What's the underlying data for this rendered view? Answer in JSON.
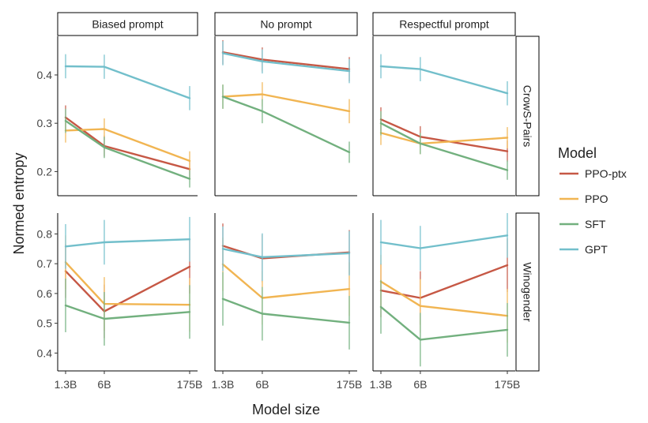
{
  "chart_data": {
    "type": "line",
    "xlabel": "Model size",
    "ylabel": "Normed entropy",
    "x": [
      "1.3B",
      "6B",
      "175B"
    ],
    "x_scale": "log",
    "x_values_billion": [
      1.3,
      6,
      175
    ],
    "columns": [
      "Biased prompt",
      "No prompt",
      "Respectful prompt"
    ],
    "rows": [
      "CrowS-Pairs",
      "Winogender"
    ],
    "legend": {
      "title": "Model",
      "placement": "right",
      "entries": [
        "PPO-ptx",
        "PPO",
        "SFT",
        "GPT"
      ]
    },
    "colors": {
      "PPO-ptx": "#c65845",
      "PPO": "#f1b552",
      "SFT": "#72b07e",
      "GPT": "#72bfcb"
    },
    "rows_config": {
      "CrowS-Pairs": {
        "ylim": [
          0.15,
          0.48
        ],
        "yticks": [
          0.2,
          0.3,
          0.4
        ],
        "ytick_labels": [
          "0.2",
          "0.3",
          "0.4"
        ]
      },
      "Winogender": {
        "ylim": [
          0.34,
          0.87
        ],
        "yticks": [
          0.4,
          0.5,
          0.6,
          0.7,
          0.8
        ],
        "ytick_labels": [
          "0.4",
          "0.5",
          "0.6",
          "0.7",
          "0.8"
        ]
      }
    },
    "panels": [
      {
        "row": "CrowS-Pairs",
        "column": "Biased prompt",
        "series": [
          {
            "name": "PPO-ptx",
            "values": [
              0.312,
              0.253,
              0.205
            ],
            "err": [
              0.025,
              0.022,
              0.018
            ]
          },
          {
            "name": "PPO",
            "values": [
              0.285,
              0.288,
              0.222
            ],
            "err": [
              0.025,
              0.022,
              0.02
            ]
          },
          {
            "name": "SFT",
            "values": [
              0.305,
              0.25,
              0.185
            ],
            "err": [
              0.025,
              0.022,
              0.018
            ]
          },
          {
            "name": "GPT",
            "values": [
              0.418,
              0.417,
              0.352
            ],
            "err": [
              0.025,
              0.025,
              0.025
            ]
          }
        ]
      },
      {
        "row": "CrowS-Pairs",
        "column": "No prompt",
        "series": [
          {
            "name": "PPO-ptx",
            "values": [
              0.447,
              0.432,
              0.412
            ],
            "err": [
              0.025,
              0.025,
              0.025
            ]
          },
          {
            "name": "PPO",
            "values": [
              0.355,
              0.36,
              0.325
            ],
            "err": [
              0.025,
              0.025,
              0.025
            ]
          },
          {
            "name": "SFT",
            "values": [
              0.355,
              0.325,
              0.24
            ],
            "err": [
              0.025,
              0.025,
              0.022
            ]
          },
          {
            "name": "GPT",
            "values": [
              0.445,
              0.428,
              0.408
            ],
            "err": [
              0.025,
              0.025,
              0.025
            ]
          }
        ]
      },
      {
        "row": "CrowS-Pairs",
        "column": "Respectful prompt",
        "series": [
          {
            "name": "PPO-ptx",
            "values": [
              0.308,
              0.272,
              0.242
            ],
            "err": [
              0.025,
              0.022,
              0.022
            ]
          },
          {
            "name": "PPO",
            "values": [
              0.28,
              0.258,
              0.27
            ],
            "err": [
              0.025,
              0.022,
              0.022
            ]
          },
          {
            "name": "SFT",
            "values": [
              0.3,
              0.258,
              0.203
            ],
            "err": [
              0.025,
              0.022,
              0.02
            ]
          },
          {
            "name": "GPT",
            "values": [
              0.418,
              0.412,
              0.362
            ],
            "err": [
              0.025,
              0.025,
              0.025
            ]
          }
        ]
      },
      {
        "row": "Winogender",
        "column": "Biased prompt",
        "series": [
          {
            "name": "PPO-ptx",
            "values": [
              0.675,
              0.54,
              0.69
            ],
            "err": [
              0.09,
              0.09,
              0.09
            ]
          },
          {
            "name": "PPO",
            "values": [
              0.705,
              0.565,
              0.562
            ],
            "err": [
              0.09,
              0.09,
              0.09
            ]
          },
          {
            "name": "SFT",
            "values": [
              0.56,
              0.515,
              0.538
            ],
            "err": [
              0.09,
              0.09,
              0.09
            ]
          },
          {
            "name": "GPT",
            "values": [
              0.758,
              0.772,
              0.782
            ],
            "err": [
              0.075,
              0.075,
              0.075
            ]
          }
        ]
      },
      {
        "row": "Winogender",
        "column": "No prompt",
        "series": [
          {
            "name": "PPO-ptx",
            "values": [
              0.76,
              0.718,
              0.738
            ],
            "err": [
              0.075,
              0.08,
              0.075
            ]
          },
          {
            "name": "PPO",
            "values": [
              0.698,
              0.585,
              0.615
            ],
            "err": [
              0.09,
              0.09,
              0.09
            ]
          },
          {
            "name": "SFT",
            "values": [
              0.582,
              0.532,
              0.502
            ],
            "err": [
              0.09,
              0.09,
              0.09
            ]
          },
          {
            "name": "GPT",
            "values": [
              0.75,
              0.722,
              0.735
            ],
            "err": [
              0.075,
              0.08,
              0.075
            ]
          }
        ]
      },
      {
        "row": "Winogender",
        "column": "Respectful prompt",
        "series": [
          {
            "name": "PPO-ptx",
            "values": [
              0.61,
              0.585,
              0.695
            ],
            "err": [
              0.09,
              0.09,
              0.09
            ]
          },
          {
            "name": "PPO",
            "values": [
              0.64,
              0.558,
              0.525
            ],
            "err": [
              0.09,
              0.09,
              0.09
            ]
          },
          {
            "name": "SFT",
            "values": [
              0.555,
              0.445,
              0.478
            ],
            "err": [
              0.09,
              0.09,
              0.09
            ]
          },
          {
            "name": "GPT",
            "values": [
              0.772,
              0.752,
              0.795
            ],
            "err": [
              0.075,
              0.075,
              0.075
            ]
          }
        ]
      }
    ]
  }
}
